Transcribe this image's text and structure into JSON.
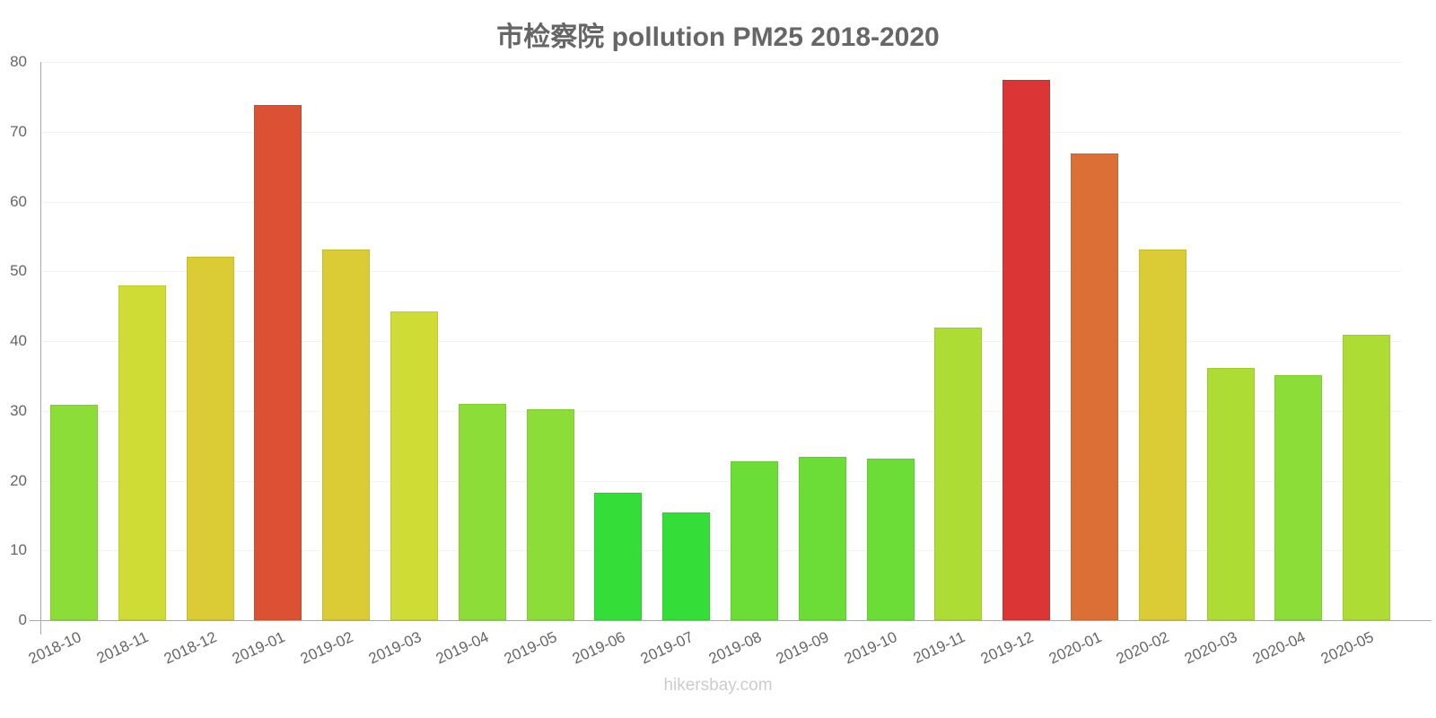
{
  "title": "市检察院 pollution PM25 2018-2020",
  "footer": "hikersbay.com",
  "y_axis": {
    "ticks": [
      "0",
      "10",
      "20",
      "30",
      "40",
      "50",
      "60",
      "70",
      "80"
    ]
  },
  "chart_data": {
    "type": "bar",
    "title": "市检察院 pollution PM25 2018-2020",
    "xlabel": "",
    "ylabel": "",
    "ylim": [
      0,
      80
    ],
    "grid": true,
    "legend": null,
    "categories": [
      "2018-10",
      "2018-11",
      "2018-12",
      "2019-01",
      "2019-02",
      "2019-03",
      "2019-04",
      "2019-05",
      "2019-06",
      "2019-07",
      "2019-08",
      "2019-09",
      "2019-10",
      "2019-11",
      "2019-12",
      "2020-01",
      "2020-02",
      "2020-03",
      "2020-04",
      "2020-05"
    ],
    "values": [
      30.9,
      48.0,
      52.1,
      73.8,
      53.1,
      44.2,
      31.0,
      30.2,
      18.2,
      15.4,
      22.8,
      23.4,
      23.2,
      41.9,
      77.4,
      66.9,
      53.1,
      36.1,
      35.1,
      40.9
    ],
    "colors": [
      "#8cdd37",
      "#cfdc35",
      "#dbcb34",
      "#dc5033",
      "#dbcb34",
      "#cfdc35",
      "#8cdd37",
      "#8cdd37",
      "#34dd37",
      "#34dd37",
      "#6cdd37",
      "#6cdd37",
      "#6cdd37",
      "#addd34",
      "#db3535",
      "#dc6f35",
      "#dbcb34",
      "#addd34",
      "#8cdd37",
      "#addd34"
    ]
  }
}
